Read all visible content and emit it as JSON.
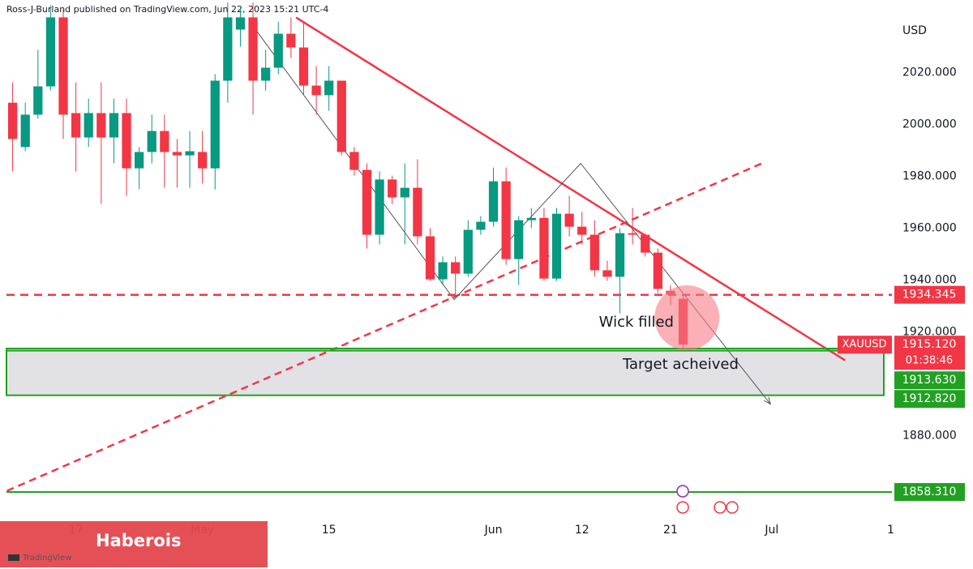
{
  "header": "Ross-J-Burland published on TradingView.com, Jun 22, 2023 15:21 UTC-4",
  "watermark": "Haberois",
  "logo": "TradingView",
  "chart_data": {
    "type": "candlestick",
    "symbol": "XAUUSD",
    "currency": "USD",
    "open": [
      2008.4,
      1991.3,
      2003.8,
      2014.7,
      2041.3,
      2004.4,
      1995,
      2004.4,
      1995,
      2004.4,
      1983.1,
      1989.4,
      1997.5,
      1989.4,
      1988.1,
      1989.4,
      1983.1,
      2016.9,
      2036.6,
      2041.3,
      2016.9,
      2021.9,
      2035,
      2029.7,
      2015,
      2011.3,
      2016.9,
      1989.4,
      1982.5,
      1957.5,
      1978.8,
      1971.9,
      1975.6,
      1956.9,
      1940.3,
      1946.9,
      1942.5,
      1959.4,
      1962.5,
      1978.1,
      1948.1,
      1963.1,
      1964,
      1940.6,
      1965.6,
      1960.6,
      1957.5,
      1943.8,
      1941.3,
      1958.1,
      1957.5,
      1950.6,
      1935.9,
      1932.8
    ],
    "high": [
      2016.3,
      2008.4,
      2028.8,
      2046,
      2044.4,
      2016.3,
      2010,
      2016.3,
      2010,
      2010,
      1991.3,
      2003.8,
      2003.8,
      1994.4,
      1997.5,
      1997.5,
      2019.4,
      2047,
      2045,
      2047,
      2028.8,
      2039.7,
      2041.3,
      2039.7,
      2022.5,
      2022.5,
      2016.9,
      1991.3,
      1985,
      1981.9,
      1980.3,
      1985,
      1986.6,
      1960,
      1949.1,
      1949.1,
      1963.1,
      1964.7,
      1983.4,
      1983.4,
      1964.7,
      1967.8,
      1967.8,
      1967.8,
      1972.5,
      1966.3,
      1963.1,
      1947.5,
      1960,
      1967.8,
      1958.1,
      1952.2,
      1938.1,
      1935
    ],
    "low": [
      1981.9,
      1989.7,
      2002.2,
      2013.1,
      1994.4,
      1981.9,
      1991.3,
      1969.4,
      1985,
      1972.5,
      1975,
      1985,
      1975.6,
      1975.6,
      1975.6,
      1977.2,
      1975,
      2008.4,
      2030,
      2003.8,
      2013.1,
      2019.4,
      2025.6,
      2011.6,
      2003.8,
      2005.3,
      1988.1,
      1980.3,
      1952.2,
      1953.8,
      1969.4,
      1953.8,
      1953.8,
      1939.7,
      1938.1,
      1933.4,
      1941.3,
      1957.5,
      1960.6,
      1945.9,
      1938.1,
      1960,
      1939.7,
      1939.7,
      1956.9,
      1953.8,
      1941.3,
      1939.7,
      1927.2,
      1953.8,
      1949.1,
      1935,
      1930.3,
      1913.8
    ],
    "close": [
      1994.4,
      2003.8,
      2014.7,
      2041.3,
      2003.8,
      1995,
      2004.4,
      1995,
      2004.4,
      1983.1,
      1989.4,
      1997.5,
      1989.4,
      1988.1,
      1989.7,
      1983.1,
      2016.9,
      2041.3,
      2041.3,
      2016.9,
      2021.9,
      2035,
      2029.7,
      2015,
      2011.3,
      2016.9,
      1989.4,
      1982.5,
      1957.5,
      1978.8,
      1971.9,
      1975.6,
      1956.9,
      1940.3,
      1946.9,
      1942.5,
      1959.4,
      1962.5,
      1978.1,
      1948.1,
      1963.1,
      1964,
      1940.6,
      1965.6,
      1960.6,
      1957.5,
      1943.8,
      1941.3,
      1958.1,
      1957.5,
      1950.6,
      1936.6,
      1934.4,
      1915.12
    ],
    "colors": {
      "up": "#089981",
      "down": "#f23645"
    },
    "xlim": [
      -1,
      69.5
    ],
    "xticks": [
      {
        "value": 5,
        "label": "17"
      },
      {
        "value": 15,
        "label": "May"
      },
      {
        "value": 25,
        "label": "15"
      },
      {
        "value": 38,
        "label": "Jun"
      },
      {
        "value": 45,
        "label": "12"
      },
      {
        "value": 52,
        "label": "21"
      },
      {
        "value": 60,
        "label": "Jul"
      },
      {
        "value": 69.4,
        "label": "1"
      }
    ],
    "ylim": [
      1848,
      2048
    ],
    "yticks": [
      {
        "value": 1880,
        "label": "1880.000"
      },
      {
        "value": 1920,
        "label": "1920.000"
      },
      {
        "value": 1940,
        "label": "1940.000"
      },
      {
        "value": 1960,
        "label": "1960.000"
      },
      {
        "value": 1980,
        "label": "1980.000"
      },
      {
        "value": 2000,
        "label": "2000.000"
      },
      {
        "value": 2020,
        "label": "2020.000"
      }
    ],
    "last_price": {
      "value": 1915.12,
      "label": "1915.120"
    },
    "countdown": "01:38:46",
    "levels": [
      {
        "value": 1934.345,
        "label": "1934.345",
        "color": "#f23645",
        "style": "dashed"
      },
      {
        "value": 1913.63,
        "label": "1913.630",
        "color": "#22a022",
        "style": "solid"
      },
      {
        "value": 1912.82,
        "label": "1912.820",
        "color": "#22a022",
        "style": "solid"
      },
      {
        "value": 1858.31,
        "label": "1858.310",
        "color": "#22a022",
        "style": "solid"
      }
    ],
    "zone": {
      "top": 1913.63,
      "bottom": 1895.6,
      "color": "#22a022"
    },
    "trendlines": [
      {
        "points": [
          [
            22.4,
            2041.25
          ],
          [
            65.8,
            1909.06
          ]
        ],
        "color": "#f23645",
        "style": "solid"
      },
      {
        "points": [
          [
            -0.45,
            1858.75
          ],
          [
            59.5,
            1985.6
          ]
        ],
        "color": "#f23645",
        "style": "dashed"
      }
    ],
    "path": {
      "points": [
        [
          19.2,
          2036.6
        ],
        [
          34.9,
          1932.5
        ],
        [
          44.9,
          1985
        ],
        [
          59.9,
          1892.2
        ]
      ],
      "color": "#555555"
    },
    "highlight": {
      "x": 53.3,
      "price": 1925.5,
      "color": "#f77c86"
    },
    "annotations": [
      {
        "text": "Wick filled",
        "x": 49.3,
        "price": 1923.6
      },
      {
        "text": "Target acheived",
        "x": 52.8,
        "price": 1907.4
      }
    ]
  }
}
